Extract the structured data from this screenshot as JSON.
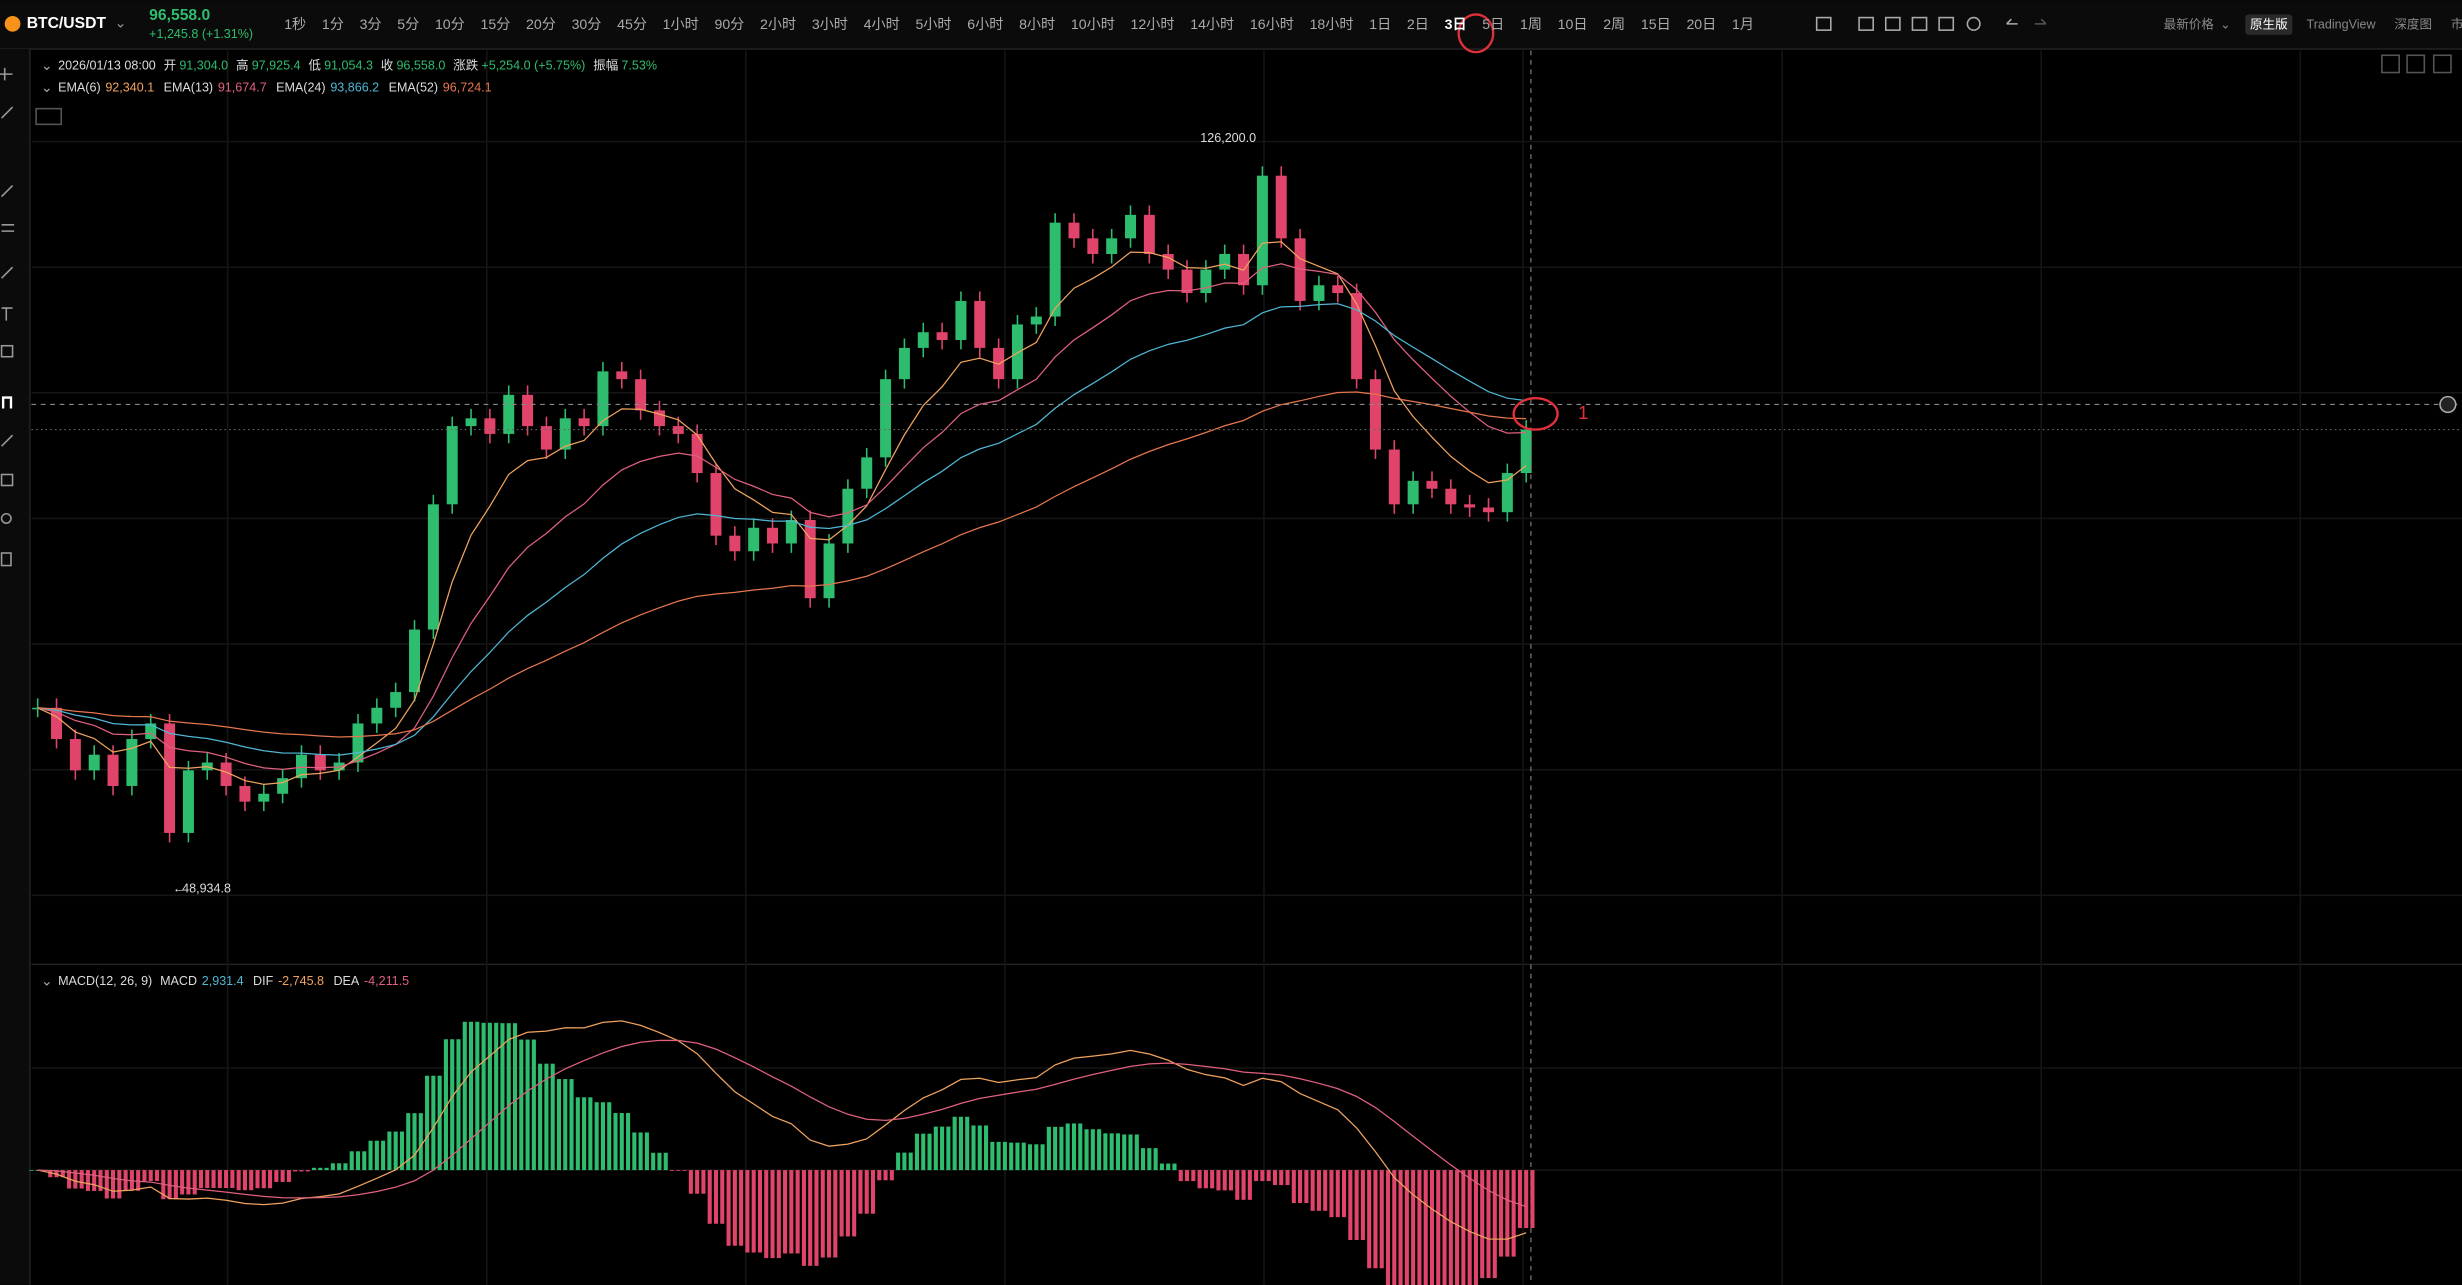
{
  "header": {
    "symbol": "BTC/USDT",
    "price": "96,558.0",
    "change": "+1,245.8 (+1.31%)"
  },
  "timeframes": [
    "1秒",
    "1分",
    "3分",
    "5分",
    "10分",
    "15分",
    "20分",
    "30分",
    "45分",
    "1小时",
    "90分",
    "2小时",
    "3小时",
    "4小时",
    "5小时",
    "6小时",
    "8小时",
    "10小时",
    "12小时",
    "14小时",
    "16小时",
    "18小时",
    "1日",
    "2日",
    "3日",
    "5日",
    "1周",
    "10日",
    "2周",
    "15日",
    "20日",
    "1月"
  ],
  "selected_timeframe": 24,
  "right_menu": {
    "price_type": "最新价格",
    "tabs": [
      "原生版",
      "TradingView",
      "深度图",
      "市值"
    ]
  },
  "ohlc_info": {
    "date": "2026/01/13 08:00",
    "items": [
      {
        "label": "开",
        "value": "91,304.0"
      },
      {
        "label": "高",
        "value": "97,925.4"
      },
      {
        "label": "低",
        "value": "91,054.3"
      },
      {
        "label": "收",
        "value": "96,558.0"
      },
      {
        "label": "涨跌",
        "value": "+5,254.0 (+5.75%)"
      },
      {
        "label": "振幅",
        "value": "7.53%"
      }
    ]
  },
  "ema_legend": [
    {
      "name": "EMA(6)",
      "period": 6,
      "value": "92,340.1",
      "color": "#f0a35e"
    },
    {
      "name": "EMA(13)",
      "period": 13,
      "value": "91,674.7",
      "color": "#e0607e"
    },
    {
      "name": "EMA(24)",
      "period": 24,
      "value": "93,866.2",
      "color": "#4fb6d4"
    },
    {
      "name": "EMA(52)",
      "period": 52,
      "value": "96,724.1",
      "color": "#e5764e"
    }
  ],
  "chart_data": {
    "type": "candlestick",
    "closes": [
      67640,
      64390,
      61130,
      62760,
      59510,
      64390,
      66010,
      54630,
      61130,
      61950,
      59510,
      57880,
      58700,
      60320,
      62760,
      61130,
      61950,
      66010,
      67640,
      69270,
      75770,
      88790,
      96920,
      97730,
      96110,
      100170,
      96920,
      94480,
      97730,
      96920,
      102610,
      101800,
      98550,
      96920,
      96110,
      92040,
      85530,
      83910,
      86350,
      84720,
      87160,
      79030,
      84720,
      90410,
      93670,
      101800,
      105050,
      106680,
      105870,
      109930,
      105050,
      101800,
      107490,
      108310,
      118070,
      116440,
      114810,
      116440,
      118880,
      114810,
      113190,
      110750,
      113190,
      114810,
      111560,
      122950,
      116440,
      109930,
      111560,
      110750,
      101800,
      94480,
      88790,
      91230,
      90410,
      88790,
      88460,
      87970,
      92040,
      96558
    ],
    "ylim": [
      41290,
      135960
    ],
    "up_color": "#2ebd6e",
    "down_color": "#e0446b",
    "high_label": "126,200.0",
    "low_label": "48,934.8",
    "annotation": "1"
  },
  "macd_legend": {
    "name": "MACD(12, 26, 9)",
    "items": [
      {
        "label": "MACD",
        "value": "2,931.4",
        "color": "#4fb6d4"
      },
      {
        "label": "DIF",
        "value": "-2,745.8",
        "color": "#f0a35e"
      },
      {
        "label": "DEA",
        "value": "-4,211.5",
        "color": "#e0607e"
      }
    ]
  }
}
